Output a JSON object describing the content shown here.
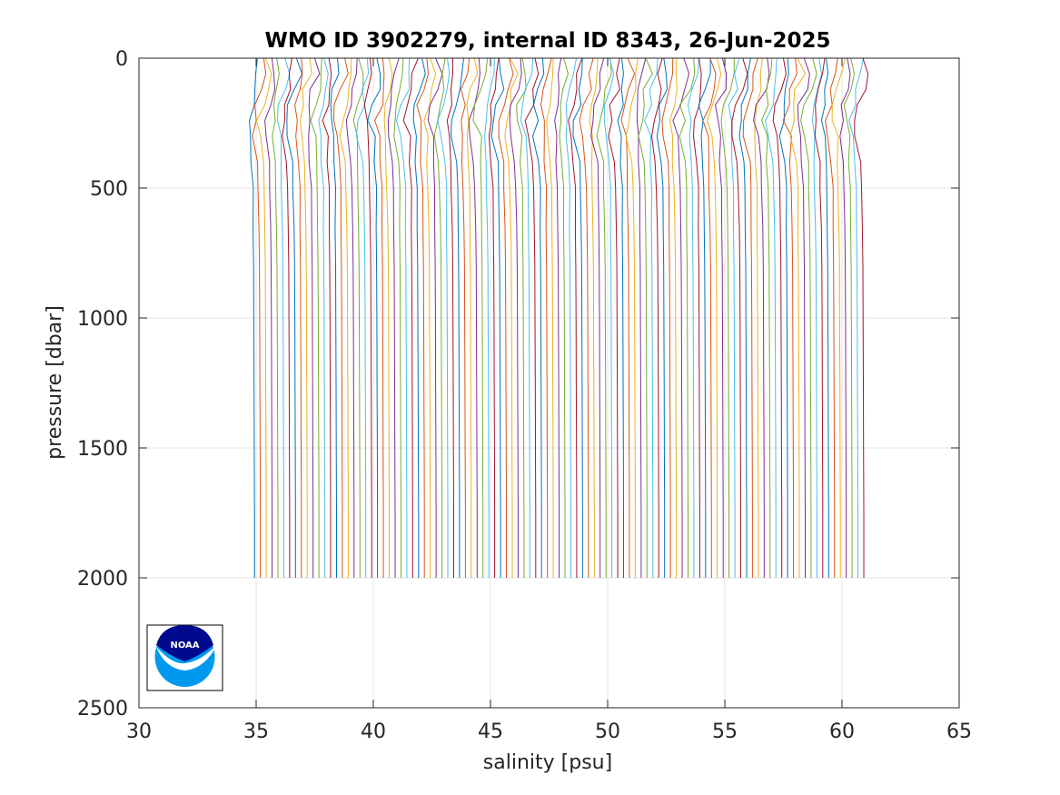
{
  "chart_data": {
    "type": "line",
    "title": "WMO ID 3902279, internal ID 8343, 26-Jun-2025",
    "xlabel": "salinity [psu]",
    "ylabel": "pressure [dbar]",
    "xlim": [
      30,
      65
    ],
    "ylim": [
      0,
      2500
    ],
    "y_reversed": true,
    "xticks": [
      30,
      35,
      40,
      45,
      50,
      55,
      60,
      65
    ],
    "yticks": [
      0,
      500,
      1000,
      1500,
      2000,
      2500
    ],
    "grid": true,
    "series_count": 105,
    "series_offset_psu": 0.25,
    "first_profile": {
      "pressure": [
        0,
        60,
        120,
        180,
        240,
        300,
        400,
        500,
        650,
        800,
        1000,
        1250,
        1500,
        1750,
        2000
      ],
      "salinity": [
        35.0,
        35.05,
        34.9,
        34.75,
        34.65,
        34.7,
        34.8,
        34.85,
        34.87,
        34.89,
        34.9,
        34.91,
        34.92,
        34.93,
        34.93
      ]
    },
    "colors": [
      "#0072BD",
      "#D95319",
      "#EDB120",
      "#7E2F8E",
      "#77AC30",
      "#4DBEEE",
      "#A2142F"
    ],
    "logo": "NOAA"
  }
}
